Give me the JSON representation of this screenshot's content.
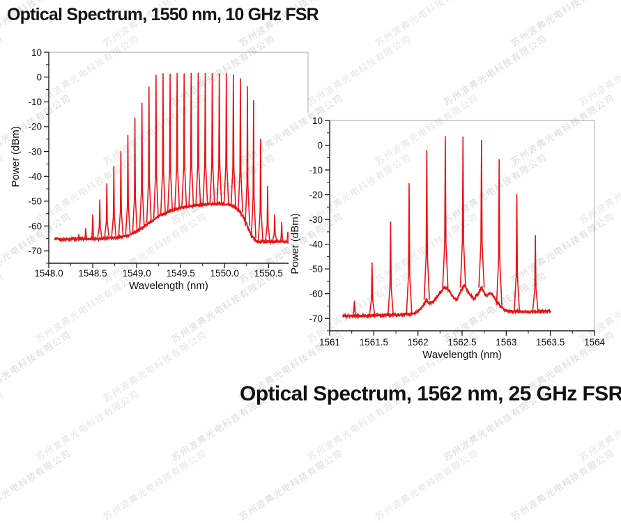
{
  "page": {
    "background": "#ffffff"
  },
  "colors": {
    "trace": "#ee1111",
    "frame": "#c4c4c4",
    "axis": "#1a1a1a",
    "text": "#111111"
  },
  "watermark": {
    "text": "苏州波弗光电科技有限公司",
    "angle_deg": -33,
    "color_light": "#e4e4e4",
    "color_dark": "#d9d9d9"
  },
  "chart_data": [
    {
      "type": "line",
      "title": "Optical Spectrum, 1550 nm, 10 GHz FSR",
      "xlabel": "Wavelength (nm)",
      "ylabel": "Power (dBm)",
      "xlim": [
        1548.0,
        1550.95
      ],
      "ylim": [
        -75,
        10
      ],
      "x_ticks": [
        1548.0,
        1548.5,
        1549.0,
        1549.5,
        1550.0,
        1550.5
      ],
      "x_tick_labels": [
        "1548.0",
        "1548.5",
        "1549.0",
        "1549.5",
        "1550.0",
        "1550.5"
      ],
      "x_minor_step": 0.25,
      "y_ticks": [
        10,
        0,
        -10,
        -20,
        -30,
        -40,
        -50,
        -60,
        -70
      ],
      "y_tick_labels": [
        "10",
        "0",
        "-10",
        "-20",
        "-30",
        "-40",
        "-50",
        "-60",
        "-70"
      ],
      "y_minor_step": 5,
      "grid": false,
      "legend": null,
      "data_range": [
        1548.07,
        1550.73
      ],
      "noise_amp": 0.5,
      "pedestal": [
        [
          1548.07,
          -65.3
        ],
        [
          1548.45,
          -65.2
        ],
        [
          1548.75,
          -64.8
        ],
        [
          1548.9,
          -63.8
        ],
        [
          1549.0,
          -62.2
        ],
        [
          1549.1,
          -59.8
        ],
        [
          1549.2,
          -57.2
        ],
        [
          1549.3,
          -55.2
        ],
        [
          1549.42,
          -53.4
        ],
        [
          1549.55,
          -52.3
        ],
        [
          1549.7,
          -51.6
        ],
        [
          1549.85,
          -51.2
        ],
        [
          1549.98,
          -51.0
        ],
        [
          1550.08,
          -51.6
        ],
        [
          1550.14,
          -52.8
        ],
        [
          1550.2,
          -55.5
        ],
        [
          1550.26,
          -60.0
        ],
        [
          1550.31,
          -64.0
        ],
        [
          1550.36,
          -66.2
        ],
        [
          1550.5,
          -66.4
        ],
        [
          1550.73,
          -66.2
        ]
      ],
      "peaks": [
        [
          1548.34,
          -63.5
        ],
        [
          1548.42,
          -61.0
        ],
        [
          1548.5,
          -55.5
        ],
        [
          1548.58,
          -49.5
        ],
        [
          1548.66,
          -43.0
        ],
        [
          1548.74,
          -36.0
        ],
        [
          1548.82,
          -30.0
        ],
        [
          1548.9,
          -23.5
        ],
        [
          1548.98,
          -16.5
        ],
        [
          1549.06,
          -10.5
        ],
        [
          1549.14,
          -4.0
        ],
        [
          1549.22,
          0.8
        ],
        [
          1549.3,
          1.4
        ],
        [
          1549.38,
          1.2
        ],
        [
          1549.46,
          1.5
        ],
        [
          1549.54,
          1.3
        ],
        [
          1549.62,
          1.5
        ],
        [
          1549.7,
          1.6
        ],
        [
          1549.78,
          1.4
        ],
        [
          1549.86,
          1.5
        ],
        [
          1549.94,
          1.3
        ],
        [
          1550.02,
          1.4
        ],
        [
          1550.1,
          0.9
        ],
        [
          1550.18,
          -0.7
        ],
        [
          1550.26,
          -3.8
        ],
        [
          1550.33,
          -9.5
        ],
        [
          1550.41,
          -25.0
        ],
        [
          1550.49,
          -44.0
        ],
        [
          1550.57,
          -55.5
        ],
        [
          1550.65,
          -58.5
        ],
        [
          1550.72,
          -62.5
        ]
      ]
    },
    {
      "type": "line",
      "title": "Optical Spectrum, 1562 nm, 25 GHz FSR",
      "xlabel": "Wavelength (nm)",
      "ylabel": "Power (dBm)",
      "xlim": [
        1561.0,
        1564.0
      ],
      "ylim": [
        -75,
        10
      ],
      "x_ticks": [
        1561.0,
        1561.5,
        1562.0,
        1562.5,
        1563.0,
        1563.5,
        1564.0
      ],
      "x_tick_labels": [
        "1561",
        "1561.5",
        "1562",
        "1562.5",
        "1563",
        "1563.5",
        "1564"
      ],
      "x_minor_step": 0.25,
      "y_ticks": [
        10,
        0,
        -10,
        -20,
        -30,
        -40,
        -50,
        -60,
        -70
      ],
      "y_tick_labels": [
        "10",
        "0",
        "-10",
        "-20",
        "-30",
        "-40",
        "-50",
        "-60",
        "-70"
      ],
      "y_minor_step": 5,
      "grid": false,
      "legend": null,
      "data_range": [
        1561.15,
        1563.5
      ],
      "noise_amp": 0.55,
      "pedestal": [
        [
          1561.15,
          -69.0
        ],
        [
          1561.45,
          -68.8
        ],
        [
          1561.75,
          -68.6
        ],
        [
          1561.95,
          -68.2
        ],
        [
          1562.02,
          -66.5
        ],
        [
          1562.08,
          -63.5
        ],
        [
          1562.1,
          -62.5
        ],
        [
          1562.13,
          -64.0
        ],
        [
          1562.18,
          -63.0
        ],
        [
          1562.24,
          -60.0
        ],
        [
          1562.3,
          -57.5
        ],
        [
          1562.35,
          -58.5
        ],
        [
          1562.4,
          -61.5
        ],
        [
          1562.44,
          -62.5
        ],
        [
          1562.49,
          -58.5
        ],
        [
          1562.53,
          -56.5
        ],
        [
          1562.58,
          -60.0
        ],
        [
          1562.63,
          -62.0
        ],
        [
          1562.68,
          -60.0
        ],
        [
          1562.72,
          -57.5
        ],
        [
          1562.77,
          -61.0
        ],
        [
          1562.82,
          -59.5
        ],
        [
          1562.88,
          -62.5
        ],
        [
          1562.94,
          -65.5
        ],
        [
          1563.0,
          -67.0
        ],
        [
          1563.2,
          -67.3
        ],
        [
          1563.5,
          -67.0
        ]
      ],
      "peaks": [
        [
          1561.28,
          -63.0
        ],
        [
          1561.48,
          -47.5
        ],
        [
          1561.69,
          -31.0
        ],
        [
          1561.9,
          -15.5
        ],
        [
          1562.1,
          -2.2
        ],
        [
          1562.31,
          3.5
        ],
        [
          1562.51,
          3.3
        ],
        [
          1562.72,
          2.0
        ],
        [
          1562.92,
          -5.8
        ],
        [
          1563.12,
          -20.0
        ],
        [
          1563.33,
          -36.5
        ]
      ]
    }
  ]
}
